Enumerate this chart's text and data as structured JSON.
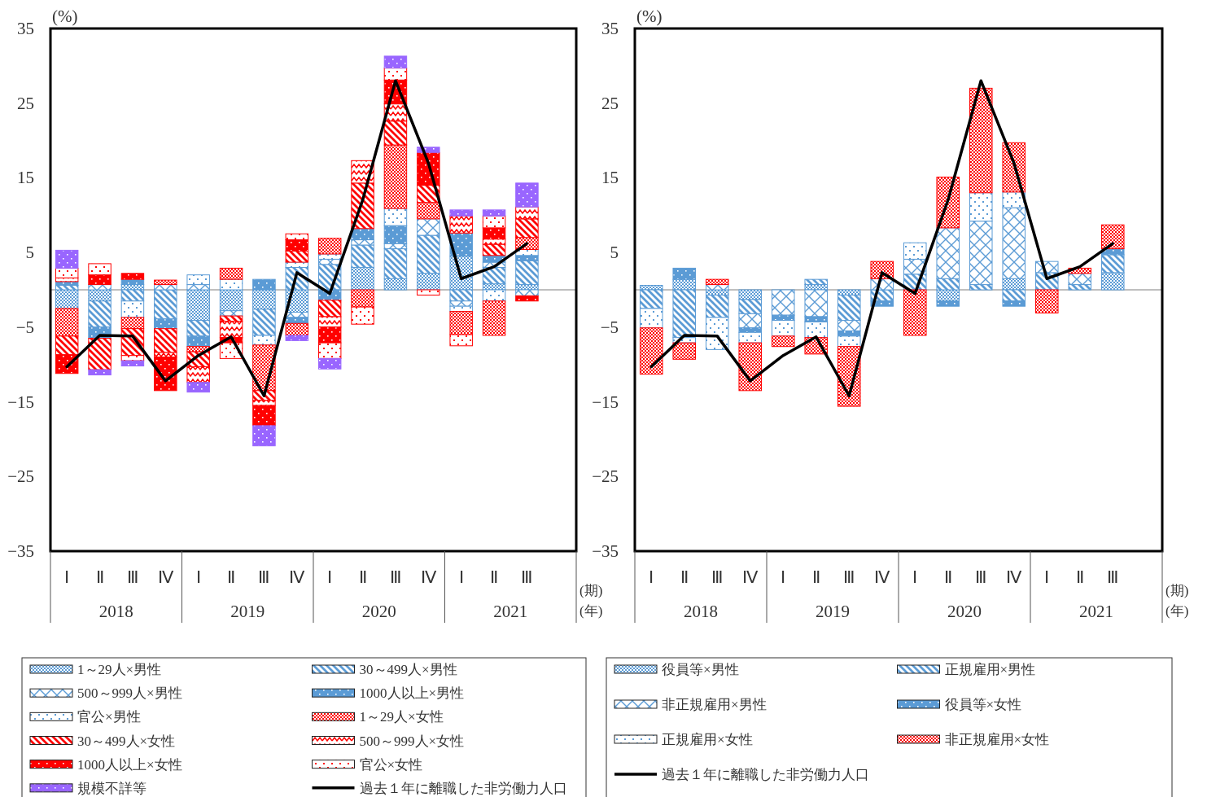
{
  "chart_data": [
    {
      "type": "bar",
      "stacked": true,
      "ylabel": "(%)",
      "xlabel": "(期)",
      "annotations": [
        "(年)",
        "2018",
        "2019",
        "2020",
        "2021"
      ],
      "legend": "bottom",
      "ylim": [
        -35,
        35
      ],
      "yticks": [
        35,
        25,
        15,
        5,
        {
          "value": -5,
          "label": "−5"
        },
        {
          "value": -15,
          "label": "−15"
        },
        {
          "value": -25,
          "label": "−25"
        },
        {
          "value": -35,
          "label": "−35"
        }
      ],
      "categories": [
        "Ⅰ",
        "Ⅱ",
        "Ⅲ",
        "Ⅳ",
        "Ⅰ",
        "Ⅱ",
        "Ⅲ",
        "Ⅳ",
        "Ⅰ",
        "Ⅱ",
        "Ⅲ",
        "Ⅳ",
        "Ⅰ",
        "Ⅱ",
        "Ⅲ",
        null
      ],
      "series": [
        {
          "name": "1～29人×男性",
          "color": "#5b9bd5",
          "values": [
            -2.5,
            -1.5,
            0.7,
            null,
            -4.1,
            -2.8,
            -2.6,
            -3.0,
            null,
            3.0,
            1.5,
            2.2,
            4.5,
            0.8,
            0.7,
            null
          ]
        },
        {
          "name": "30～499人×男性",
          "color": "#5b9bd5",
          "values": [
            0.6,
            -3.5,
            -1.5,
            -3.9,
            -2.1,
            null,
            -3.5,
            3.0,
            3.4,
            3.0,
            4.0,
            5.1,
            -1.5,
            2.2,
            3.2,
            null
          ]
        },
        {
          "name": "500～999人×男性",
          "color": "#5b9bd5",
          "values": [
            null,
            0.7,
            null,
            0.7,
            0.7,
            -0.7,
            null,
            -0.7,
            0.7,
            0.7,
            0.7,
            2.2,
            -0.7,
            0.7,
            -0.8,
            null
          ]
        },
        {
          "name": "1000人以上×男性",
          "color": "#5b9bd5",
          "values": [
            0.5,
            -1.5,
            0.7,
            -1.3,
            -1.4,
            null,
            1.4,
            -0.8,
            -1.4,
            1.5,
            2.4,
            null,
            3.1,
            0.9,
            0.7,
            null
          ]
        },
        {
          "name": "官公×男性",
          "color": "#5b9bd5",
          "values": [
            null,
            null,
            -2.2,
            null,
            1.3,
            1.4,
            -1.3,
            0.7,
            0.7,
            null,
            2.3,
            null,
            -0.7,
            -1.5,
            0.8,
            null
          ]
        },
        {
          "name": "1～29人×女性",
          "color": "#ff0000",
          "values": [
            -3.7,
            null,
            -1.5,
            0.6,
            -0.7,
            1.5,
            -6.1,
            -1.6,
            2.1,
            -2.3,
            8.5,
            2.2,
            -3.1,
            -4.6,
            1.6,
            null
          ]
        },
        {
          "name": "30～499人×女性",
          "color": "#ff0000",
          "values": [
            -2.5,
            -4.2,
            -3.6,
            -3.2,
            -2.0,
            -0.7,
            -1.3,
            1.5,
            -2.2,
            6.1,
            3.2,
            2.3,
            null,
            1.5,
            2.5,
            null
          ]
        },
        {
          "name": "500～999人×女性",
          "color": "#ff0000",
          "values": [
            0.5,
            null,
            null,
            -0.6,
            -2.1,
            -2.2,
            -0.7,
            null,
            -1.4,
            3.0,
            2.3,
            null,
            2.3,
            0.7,
            1.6,
            null
          ]
        },
        {
          "name": "1000人以上×女性",
          "color": "#ff0000",
          "values": [
            -2.5,
            1.3,
            0.8,
            -4.5,
            null,
            -0.7,
            -2.7,
            1.5,
            -2.1,
            null,
            3.2,
            4.4,
            null,
            1.5,
            -0.7,
            null
          ]
        },
        {
          "name": "官公×女性",
          "color": "#ff0000",
          "values": [
            1.3,
            1.5,
            -0.7,
            null,
            null,
            -2.1,
            null,
            0.8,
            -2.1,
            -2.3,
            1.6,
            -0.7,
            -1.5,
            1.6,
            null,
            null
          ]
        },
        {
          "name": "規模不詳等",
          "color": "#9966ff",
          "values": [
            2.4,
            -0.7,
            -0.7,
            null,
            -1.3,
            null,
            -2.7,
            -0.7,
            -1.4,
            null,
            1.6,
            0.7,
            0.8,
            0.8,
            3.2,
            null
          ]
        },
        {
          "name": "過去１年に離職した非労働力人口",
          "type": "line",
          "color": "#000000",
          "values": [
            -10.3,
            -6.1,
            -6.2,
            -12.2,
            -8.8,
            -6.3,
            -14.2,
            2.3,
            -0.5,
            12.0,
            28.0,
            17.0,
            1.5,
            3.1,
            6.2,
            null
          ]
        }
      ]
    },
    {
      "type": "bar",
      "stacked": true,
      "ylabel": "(%)",
      "xlabel": "(期)",
      "annotations": [
        "(年)",
        "2018",
        "2019",
        "2020",
        "2021"
      ],
      "legend": "bottom",
      "ylim": [
        -35,
        35
      ],
      "yticks": [
        35,
        25,
        15,
        5,
        {
          "value": -5,
          "label": "−5"
        },
        {
          "value": -15,
          "label": "−15"
        },
        {
          "value": -25,
          "label": "−25"
        },
        {
          "value": -35,
          "label": "−35"
        }
      ],
      "categories": [
        "Ⅰ",
        "Ⅱ",
        "Ⅲ",
        "Ⅳ",
        "Ⅰ",
        "Ⅱ",
        "Ⅲ",
        "Ⅳ",
        "Ⅰ",
        "Ⅱ",
        "Ⅲ",
        "Ⅳ",
        "Ⅰ",
        "Ⅱ",
        "Ⅲ",
        null
      ],
      "series": [
        {
          "name": "役員等×男性",
          "color": "#5b9bd5",
          "values": [
            0.6,
            1.4,
            -0.7,
            -1.3,
            null,
            0.7,
            -0.7,
            null,
            null,
            -1.5,
            null,
            1.5,
            null,
            null,
            2.3,
            null
          ]
        },
        {
          "name": "正規雇用×男性",
          "color": "#5b9bd5",
          "values": [
            -2.5,
            -6.4,
            -3.0,
            -1.9,
            null,
            0.7,
            -3.4,
            -1.5,
            2.1,
            1.5,
            0.7,
            -1.5,
            2.3,
            0.7,
            2.4,
            null
          ]
        },
        {
          "name": "非正規雇用×男性",
          "color": "#5b9bd5",
          "values": [
            null,
            null,
            0.7,
            -1.9,
            -3.4,
            -3.6,
            -1.4,
            1.5,
            2.0,
            6.8,
            8.5,
            9.5,
            1.5,
            1.5,
            null,
            null
          ]
        },
        {
          "name": "役員等×女性",
          "color": "#5b9bd5",
          "values": [
            null,
            1.5,
            null,
            -0.6,
            -0.7,
            -0.7,
            -0.7,
            -0.7,
            null,
            -0.7,
            null,
            -0.7,
            null,
            null,
            0.8,
            null
          ]
        },
        {
          "name": "正規雇用×女性",
          "color": "#5b9bd5",
          "values": [
            -2.6,
            -0.7,
            -4.3,
            -1.4,
            -2.1,
            -2.1,
            -1.4,
            null,
            2.2,
            null,
            3.8,
            2.1,
            null,
            null,
            null,
            null
          ]
        },
        {
          "name": "非正規雇用×女性",
          "color": "#ff0000",
          "values": [
            -6.2,
            -2.2,
            0.7,
            -6.4,
            -1.4,
            -2.2,
            -8.0,
            2.3,
            -6.1,
            6.8,
            14.0,
            6.6,
            -3.1,
            0.7,
            3.2,
            null
          ]
        },
        {
          "name": "過去１年に離職した非労働力人口",
          "type": "line",
          "color": "#000000",
          "values": [
            -10.3,
            -6.1,
            -6.2,
            -12.2,
            -8.8,
            -6.3,
            -14.2,
            2.3,
            -0.5,
            12.0,
            28.0,
            17.0,
            1.5,
            3.1,
            6.2,
            null
          ]
        }
      ]
    }
  ]
}
